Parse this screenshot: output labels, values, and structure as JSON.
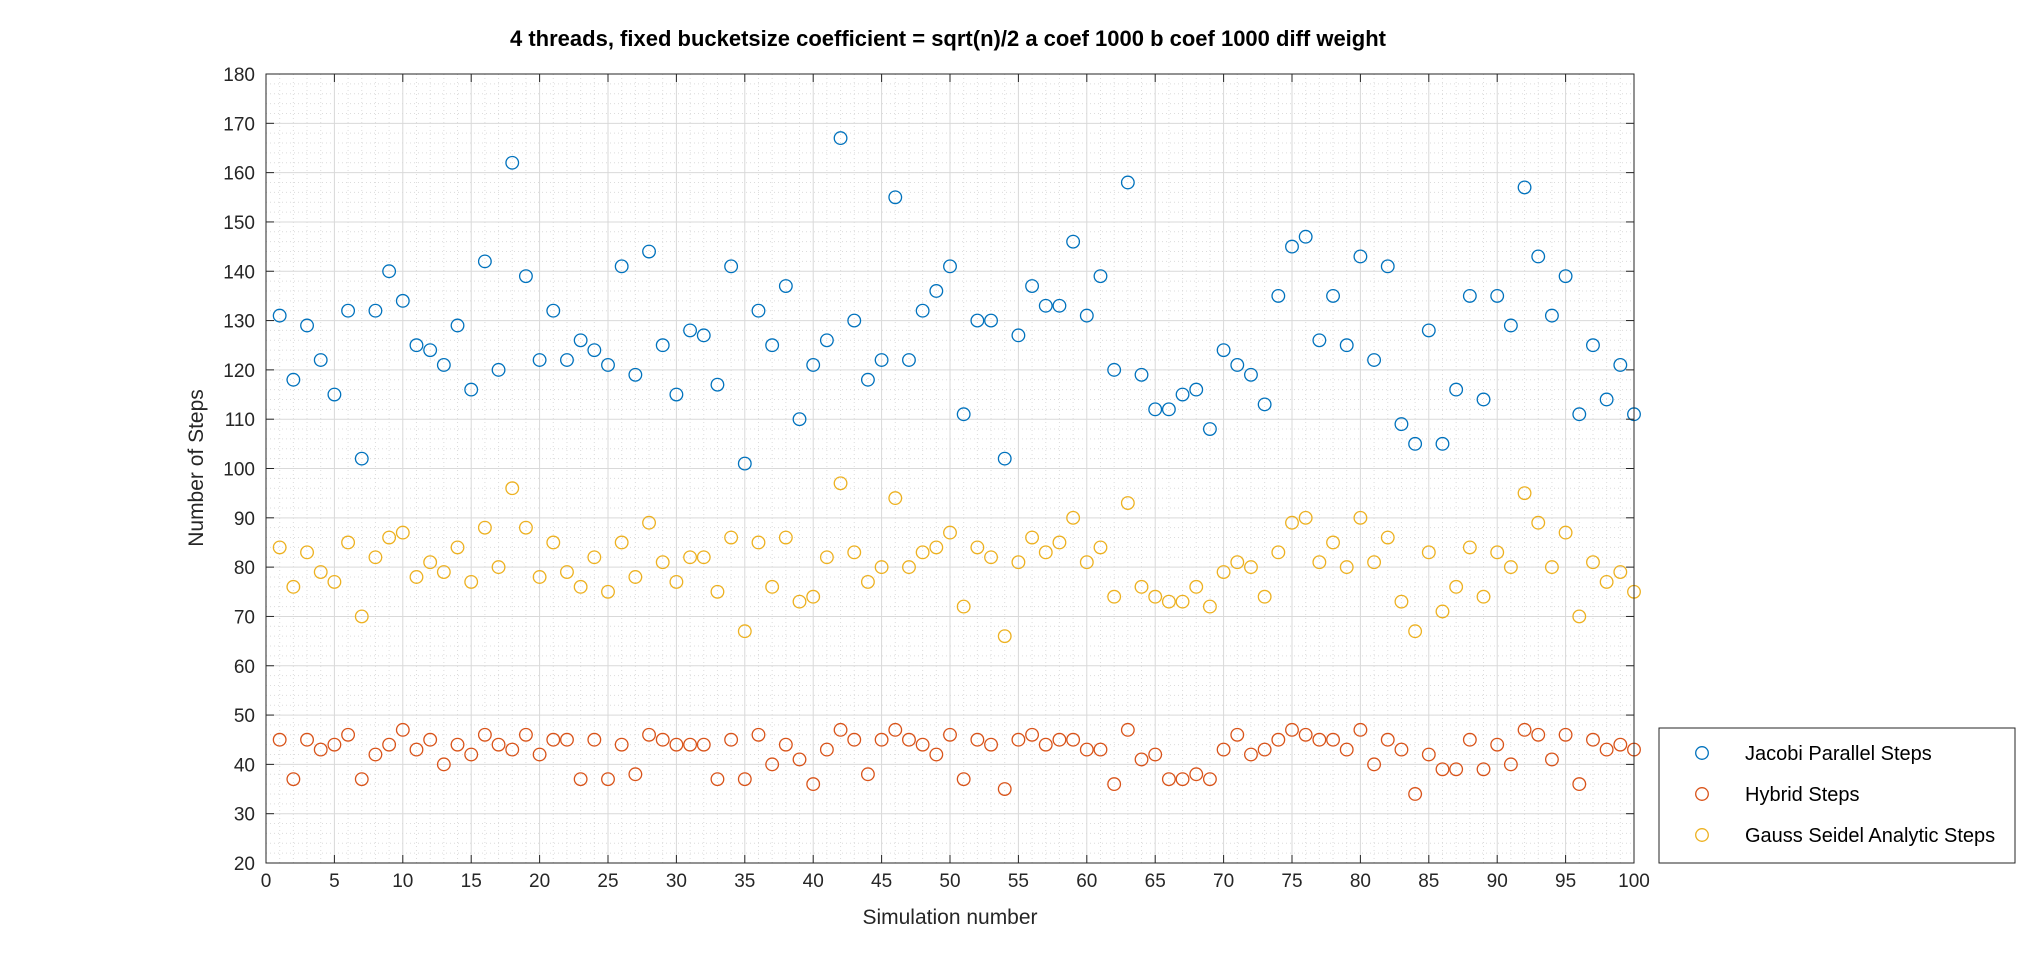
{
  "chart_data": {
    "type": "scatter",
    "title": "4 threads, fixed bucketsize coefficient = sqrt(n)/2 a coef 1000 b coef 1000 diff weight",
    "xlabel": "Simulation number",
    "ylabel": "Number of Steps",
    "xlim": [
      0,
      100
    ],
    "ylim": [
      20,
      180
    ],
    "xticks": [
      0,
      5,
      10,
      15,
      20,
      25,
      30,
      35,
      40,
      45,
      50,
      55,
      60,
      65,
      70,
      75,
      80,
      85,
      90,
      95,
      100
    ],
    "yticks": [
      20,
      30,
      40,
      50,
      60,
      70,
      80,
      90,
      100,
      110,
      120,
      130,
      140,
      150,
      160,
      170,
      180
    ],
    "grid": "major and minor",
    "legend_position": "outside right, lower",
    "x": [
      1,
      2,
      3,
      4,
      5,
      6,
      7,
      8,
      9,
      10,
      11,
      12,
      13,
      14,
      15,
      16,
      17,
      18,
      19,
      20,
      21,
      22,
      23,
      24,
      25,
      26,
      27,
      28,
      29,
      30,
      31,
      32,
      33,
      34,
      35,
      36,
      37,
      38,
      39,
      40,
      41,
      42,
      43,
      44,
      45,
      46,
      47,
      48,
      49,
      50,
      51,
      52,
      53,
      54,
      55,
      56,
      57,
      58,
      59,
      60,
      61,
      62,
      63,
      64,
      65,
      66,
      67,
      68,
      69,
      70,
      71,
      72,
      73,
      74,
      75,
      76,
      77,
      78,
      79,
      80,
      81,
      82,
      83,
      84,
      85,
      86,
      87,
      88,
      89,
      90,
      91,
      92,
      93,
      94,
      95,
      96,
      97,
      98,
      99,
      100
    ],
    "series": [
      {
        "name": "Jacobi Parallel Steps",
        "color": "#0072bd",
        "marker": "circle-open",
        "values": [
          131,
          118,
          129,
          122,
          115,
          132,
          102,
          132,
          140,
          134,
          125,
          124,
          121,
          129,
          116,
          142,
          120,
          162,
          139,
          122,
          132,
          122,
          126,
          124,
          121,
          141,
          119,
          144,
          125,
          115,
          128,
          127,
          117,
          141,
          101,
          132,
          125,
          137,
          110,
          121,
          126,
          167,
          130,
          118,
          122,
          155,
          122,
          132,
          136,
          141,
          111,
          130,
          130,
          102,
          127,
          137,
          133,
          133,
          146,
          131,
          139,
          120,
          158,
          119,
          112,
          112,
          115,
          116,
          108,
          124,
          121,
          119,
          113,
          135,
          145,
          147,
          126,
          135,
          125,
          143,
          122,
          141,
          109,
          105,
          128,
          105,
          116,
          135,
          114,
          135,
          129,
          157,
          143,
          131,
          139,
          111,
          125,
          114,
          121,
          111
        ]
      },
      {
        "name": "Hybrid Steps",
        "color": "#d95319",
        "marker": "circle-open",
        "values": [
          45,
          37,
          45,
          43,
          44,
          46,
          37,
          42,
          44,
          47,
          43,
          45,
          40,
          44,
          42,
          46,
          44,
          43,
          46,
          42,
          45,
          45,
          37,
          45,
          37,
          44,
          38,
          46,
          45,
          44,
          44,
          44,
          37,
          45,
          37,
          46,
          40,
          44,
          41,
          36,
          43,
          47,
          45,
          38,
          45,
          47,
          45,
          44,
          42,
          46,
          37,
          45,
          44,
          35,
          45,
          46,
          44,
          45,
          45,
          43,
          43,
          36,
          47,
          41,
          42,
          37,
          37,
          38,
          37,
          43,
          46,
          42,
          43,
          45,
          47,
          46,
          45,
          45,
          43,
          47,
          40,
          45,
          43,
          34,
          42,
          39,
          39,
          45,
          39,
          44,
          40,
          47,
          46,
          41,
          46,
          36,
          45,
          43,
          44,
          43
        ]
      },
      {
        "name": "Gauss Seidel Analytic Steps",
        "color": "#edb120",
        "marker": "circle-open",
        "values": [
          84,
          76,
          83,
          79,
          77,
          85,
          70,
          82,
          86,
          87,
          78,
          81,
          79,
          84,
          77,
          88,
          80,
          96,
          88,
          78,
          85,
          79,
          76,
          82,
          75,
          85,
          78,
          89,
          81,
          77,
          82,
          82,
          75,
          86,
          67,
          85,
          76,
          86,
          73,
          74,
          82,
          97,
          83,
          77,
          80,
          94,
          80,
          83,
          84,
          87,
          72,
          84,
          82,
          66,
          81,
          86,
          83,
          85,
          90,
          81,
          84,
          74,
          93,
          76,
          74,
          73,
          73,
          76,
          72,
          79,
          81,
          80,
          74,
          83,
          89,
          90,
          81,
          85,
          80,
          90,
          81,
          86,
          73,
          67,
          83,
          71,
          76,
          84,
          74,
          83,
          80,
          95,
          89,
          80,
          87,
          70,
          81,
          77,
          79,
          75
        ]
      }
    ]
  }
}
